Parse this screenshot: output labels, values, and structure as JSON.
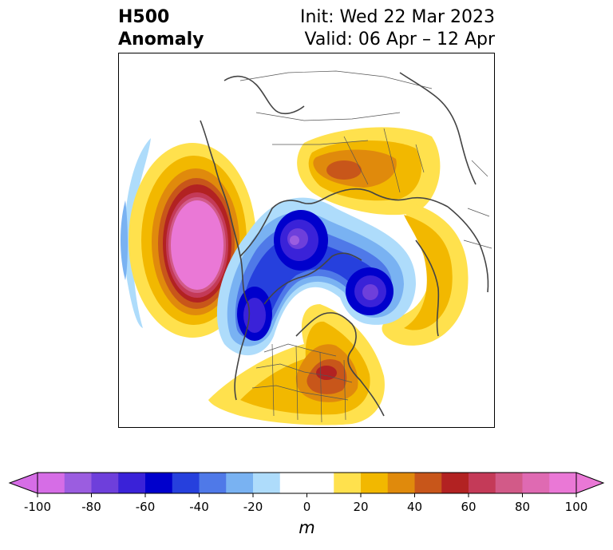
{
  "header": {
    "title_line1": "H500",
    "title_line2": "Anomaly",
    "init": "Init: Wed 22 Mar 2023",
    "valid": "Valid: 06 Apr – 12 Apr"
  },
  "colorbar": {
    "unit": "m",
    "ticks": [
      "-100",
      "-80",
      "-60",
      "-40",
      "-20",
      "0",
      "20",
      "40",
      "60",
      "80",
      "100"
    ],
    "colors": [
      "#d66de6",
      "#9b5de0",
      "#6e3fdb",
      "#3a22d8",
      "#0000cc",
      "#2640dd",
      "#4f79e8",
      "#79b2f2",
      "#aedcfb",
      "#ffffff",
      "#ffffff",
      "#ffe14d",
      "#f2b800",
      "#e08a0c",
      "#c8561a",
      "#b22222",
      "#c43a58",
      "#d25a88",
      "#df6ab2",
      "#ea78d6"
    ],
    "under_color": "#d66de6",
    "over_color": "#ea78d6"
  },
  "map": {
    "projection": "north-polar-stereographic",
    "features": [
      "H500 anomaly shading",
      "coastlines",
      "country borders",
      "US state borders"
    ]
  }
}
